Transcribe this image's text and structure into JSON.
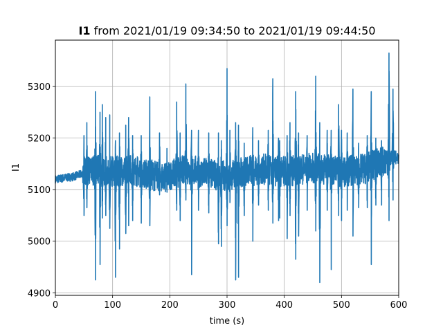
{
  "chart_data": {
    "type": "line",
    "title_bold": "I1",
    "title_rest": " from 2021/01/19 09:34:50 to 2021/01/19 09:44:50",
    "xlabel": "time (s)",
    "ylabel": "I1",
    "xlim": [
      0,
      600
    ],
    "ylim": [
      4895,
      5390
    ],
    "xticks": [
      0,
      100,
      200,
      300,
      400,
      500,
      600
    ],
    "yticks": [
      4900,
      5000,
      5100,
      5200,
      5300
    ],
    "grid": true,
    "color": "#1f77b4",
    "series": [
      {
        "name": "",
        "base": [
          [
            0,
            5120
          ],
          [
            30,
            5125
          ],
          [
            45,
            5130
          ],
          [
            70,
            5140
          ],
          [
            100,
            5135
          ],
          [
            130,
            5140
          ],
          [
            160,
            5130
          ],
          [
            190,
            5125
          ],
          [
            230,
            5140
          ],
          [
            270,
            5130
          ],
          [
            300,
            5128
          ],
          [
            330,
            5135
          ],
          [
            360,
            5140
          ],
          [
            400,
            5135
          ],
          [
            430,
            5140
          ],
          [
            460,
            5142
          ],
          [
            500,
            5135
          ],
          [
            540,
            5140
          ],
          [
            570,
            5155
          ],
          [
            600,
            5165
          ]
        ],
        "spikes": [
          [
            50,
            5205,
            5050
          ],
          [
            55,
            5230,
            5065
          ],
          [
            70,
            5290,
            4925
          ],
          [
            78,
            5250,
            4955
          ],
          [
            82,
            5265,
            5045
          ],
          [
            88,
            5240,
            5050
          ],
          [
            95,
            5245,
            5025
          ],
          [
            105,
            5195,
            4930
          ],
          [
            112,
            5210,
            4985
          ],
          [
            123,
            5225,
            5015
          ],
          [
            128,
            5240,
            5030
          ],
          [
            135,
            5205,
            5040
          ],
          [
            150,
            5205,
            5035
          ],
          [
            165,
            5280,
            5030
          ],
          [
            182,
            5210,
            5090
          ],
          [
            195,
            5180,
            5095
          ],
          [
            212,
            5270,
            5060
          ],
          [
            218,
            5210,
            5040
          ],
          [
            228,
            5305,
            5080
          ],
          [
            238,
            5215,
            4935
          ],
          [
            250,
            5215,
            5060
          ],
          [
            268,
            5210,
            5055
          ],
          [
            285,
            5210,
            4995
          ],
          [
            290,
            5195,
            4990
          ],
          [
            300,
            5335,
            5030
          ],
          [
            305,
            5215,
            5075
          ],
          [
            315,
            5230,
            4925
          ],
          [
            320,
            5225,
            4930
          ],
          [
            330,
            5190,
            5050
          ],
          [
            345,
            5220,
            5000
          ],
          [
            355,
            5195,
            5070
          ],
          [
            372,
            5215,
            5060
          ],
          [
            380,
            5315,
            5035
          ],
          [
            390,
            5200,
            5040
          ],
          [
            392,
            5195,
            5045
          ],
          [
            405,
            5205,
            5005
          ],
          [
            410,
            5230,
            5050
          ],
          [
            420,
            5290,
            4965
          ],
          [
            425,
            5210,
            5010
          ],
          [
            440,
            5205,
            5060
          ],
          [
            455,
            5320,
            5020
          ],
          [
            462,
            5230,
            4920
          ],
          [
            475,
            5215,
            5060
          ],
          [
            482,
            5215,
            4945
          ],
          [
            495,
            5265,
            5050
          ],
          [
            500,
            5215,
            5040
          ],
          [
            510,
            5210,
            5060
          ],
          [
            520,
            5295,
            5010
          ],
          [
            530,
            5190,
            5065
          ],
          [
            545,
            5205,
            5065
          ],
          [
            552,
            5290,
            4955
          ],
          [
            560,
            5200,
            5070
          ],
          [
            570,
            5195,
            5070
          ],
          [
            583,
            5365,
            5040
          ],
          [
            590,
            5295,
            5080
          ],
          [
            595,
            5175,
            5150
          ]
        ]
      }
    ]
  }
}
